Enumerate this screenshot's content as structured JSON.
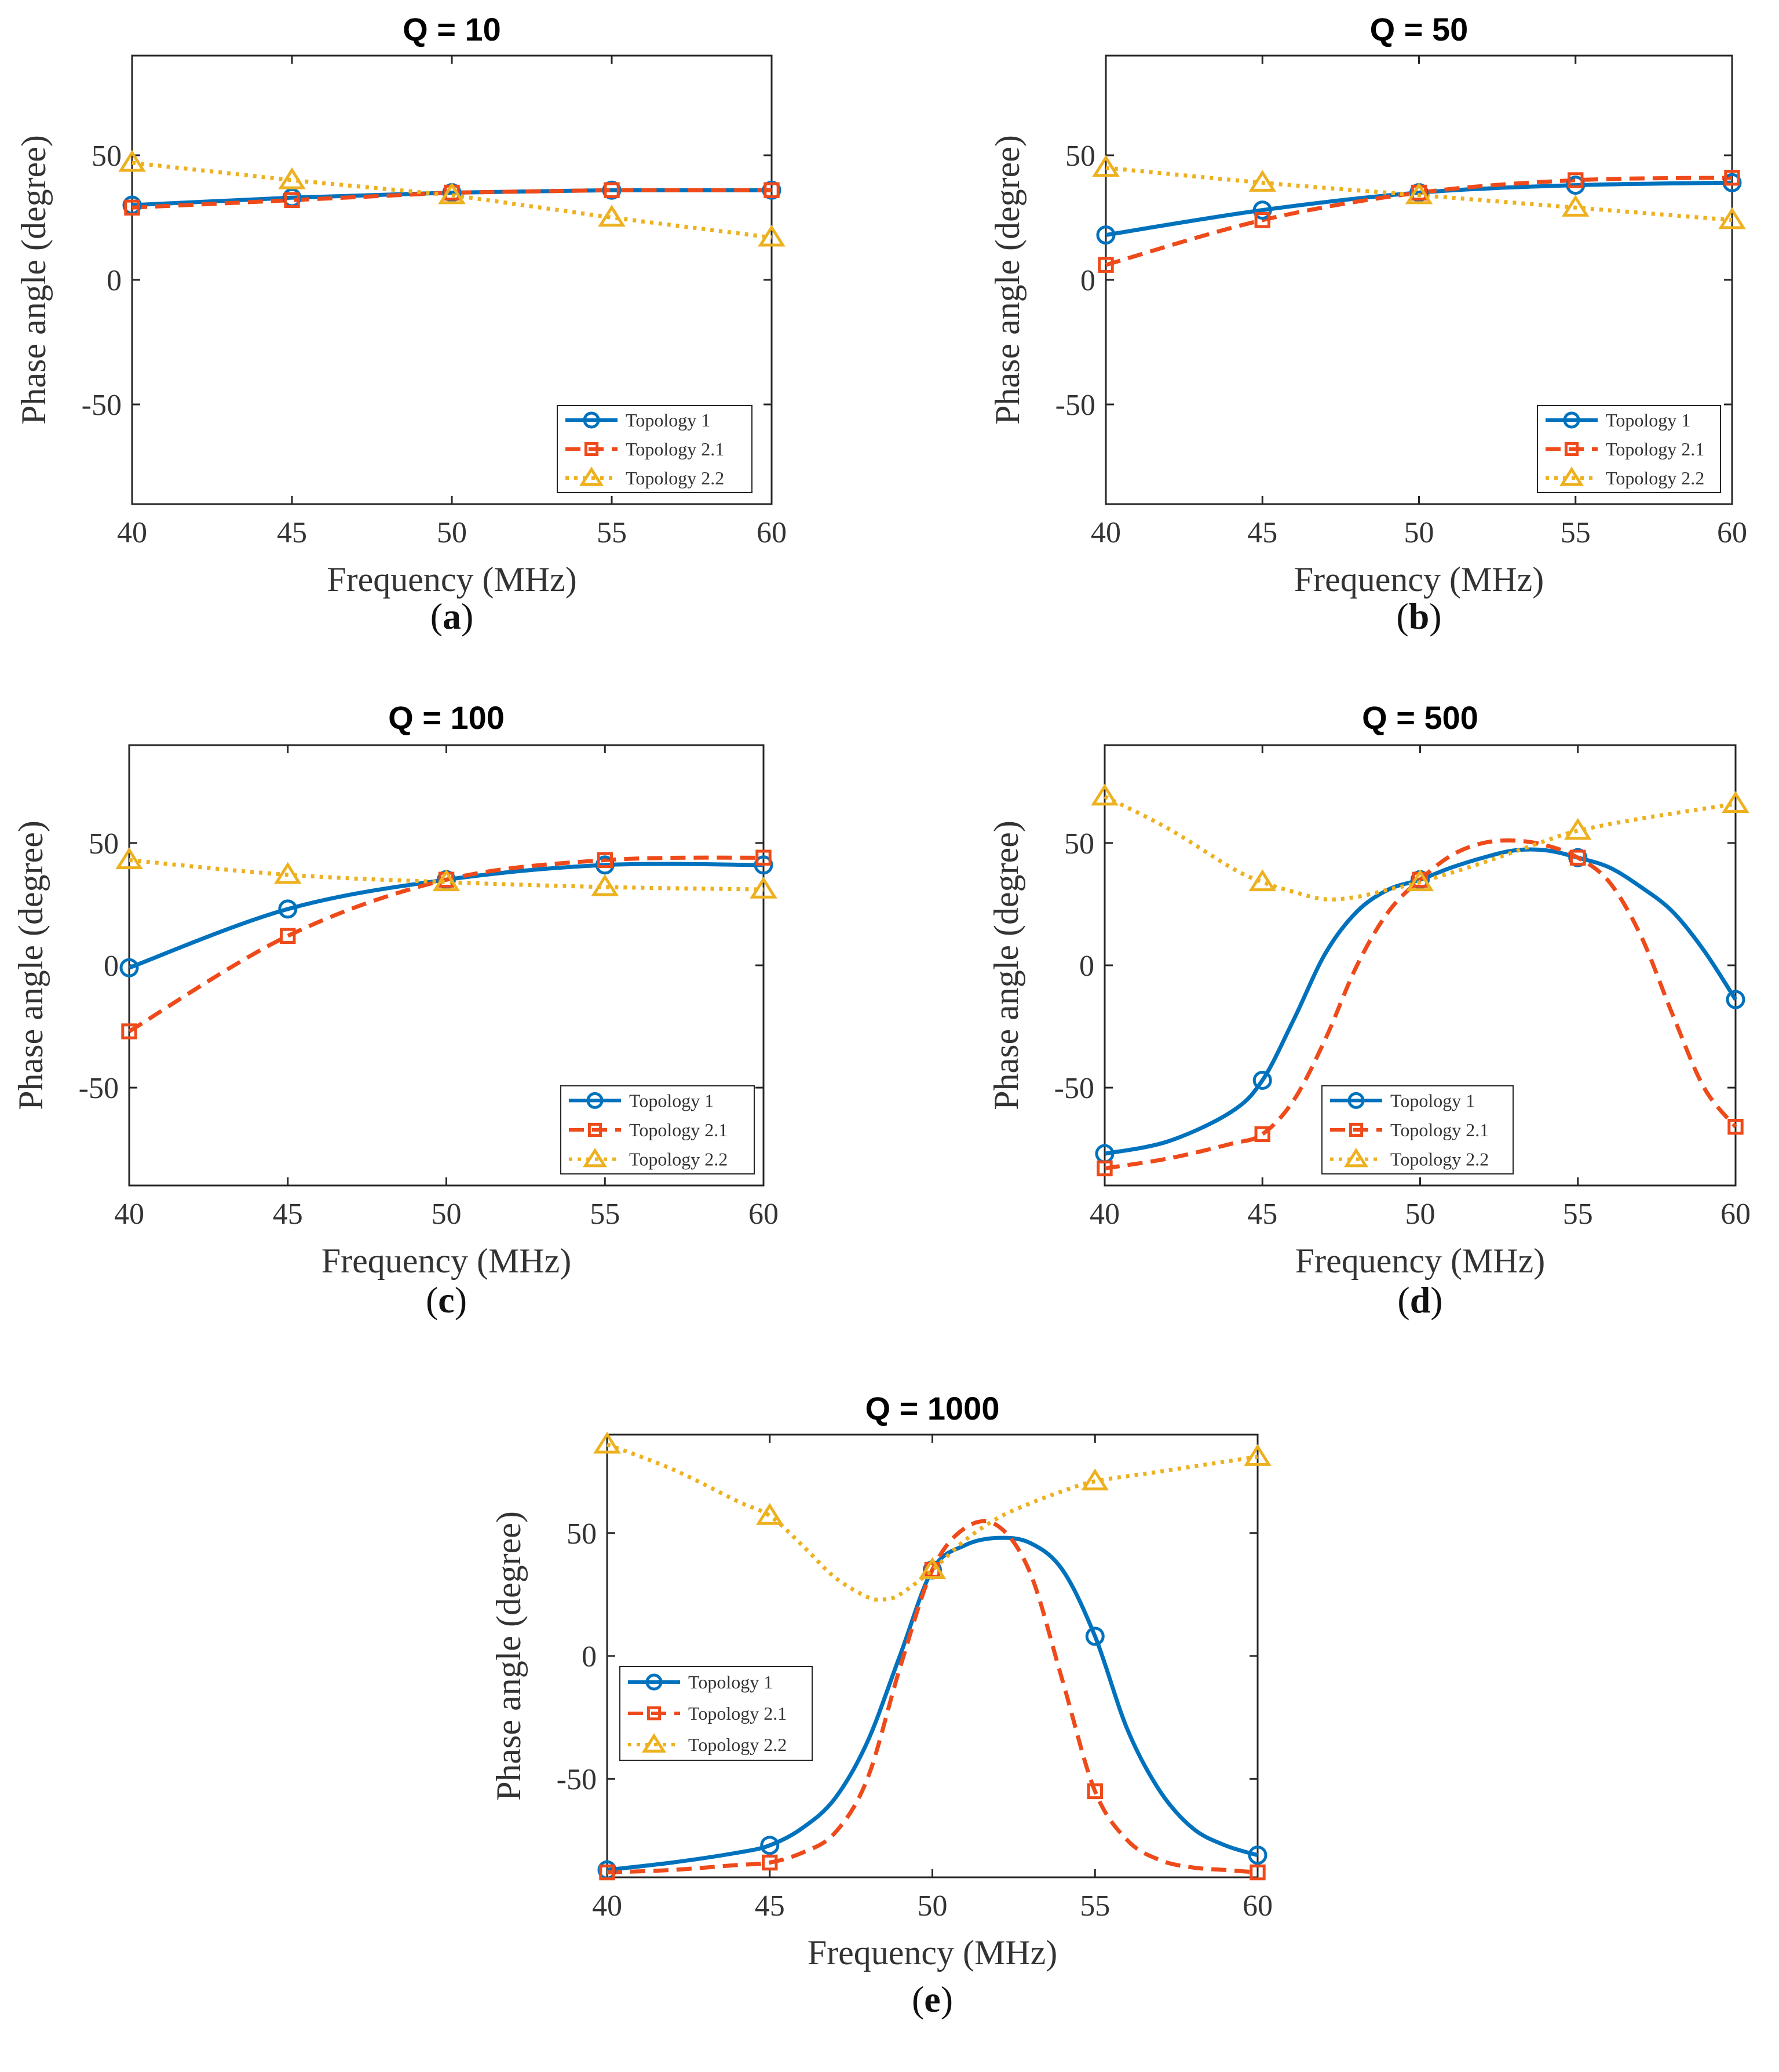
{
  "figure": {
    "x_label": "Frequency (MHz)",
    "y_label": "Phase angle (degree)",
    "legend": [
      "Topology 1",
      "Topology 2.1",
      "Topology 2.2"
    ],
    "colors": {
      "topology1": "#0072BD",
      "topology21": "#EE4A1A",
      "topology22": "#EDB120"
    },
    "markers": [
      "circle",
      "square",
      "triangle"
    ]
  },
  "chart_data": [
    {
      "type": "line",
      "panel_label": "a",
      "title": "Q = 10",
      "xlabel": "Frequency (MHz)",
      "ylabel": "Phase angle (degree)",
      "x": [
        40,
        45,
        50,
        55,
        60
      ],
      "xlim": [
        40,
        60
      ],
      "ylim": [
        -90,
        90
      ],
      "xticks": [
        40,
        45,
        50,
        55,
        60
      ],
      "yticks": [
        -50,
        0,
        50
      ],
      "legend_position": "bottom-right",
      "series": [
        {
          "name": "Topology 1",
          "values": [
            30,
            33,
            35,
            36,
            36
          ]
        },
        {
          "name": "Topology 2.1",
          "values": [
            29,
            32,
            35,
            36,
            36
          ]
        },
        {
          "name": "Topology 2.2",
          "values": [
            47,
            40,
            34,
            25,
            17
          ]
        }
      ]
    },
    {
      "type": "line",
      "panel_label": "b",
      "title": "Q = 50",
      "xlabel": "Frequency (MHz)",
      "ylabel": "Phase angle (degree)",
      "x": [
        40,
        45,
        50,
        55,
        60
      ],
      "xlim": [
        40,
        60
      ],
      "ylim": [
        -90,
        90
      ],
      "xticks": [
        40,
        45,
        50,
        55,
        60
      ],
      "yticks": [
        -50,
        0,
        50
      ],
      "legend_position": "bottom-right",
      "series": [
        {
          "name": "Topology 1",
          "values": [
            18,
            28,
            35,
            38,
            39
          ]
        },
        {
          "name": "Topology 2.1",
          "values": [
            6,
            24,
            35,
            40,
            41
          ]
        },
        {
          "name": "Topology 2.2",
          "values": [
            45,
            39,
            34,
            29,
            24
          ]
        }
      ]
    },
    {
      "type": "line",
      "panel_label": "c",
      "title": "Q = 100",
      "xlabel": "Frequency (MHz)",
      "ylabel": "Phase angle (degree)",
      "x": [
        40,
        45,
        50,
        55,
        60
      ],
      "xlim": [
        40,
        60
      ],
      "ylim": [
        -90,
        90
      ],
      "xticks": [
        40,
        45,
        50,
        55,
        60
      ],
      "yticks": [
        -50,
        0,
        50
      ],
      "legend_position": "bottom-right",
      "series": [
        {
          "name": "Topology 1",
          "values": [
            -1,
            23,
            35,
            41,
            41
          ]
        },
        {
          "name": "Topology 2.1",
          "values": [
            -27,
            12,
            35,
            43,
            44
          ]
        },
        {
          "name": "Topology 2.2",
          "values": [
            43,
            37,
            34,
            32,
            31
          ]
        }
      ]
    },
    {
      "type": "line",
      "panel_label": "d",
      "title": "Q = 500",
      "xlabel": "Frequency (MHz)",
      "ylabel": "Phase angle (degree)",
      "x": [
        40,
        45,
        50,
        55,
        60
      ],
      "xlim": [
        40,
        60
      ],
      "ylim": [
        -90,
        90
      ],
      "xticks": [
        40,
        45,
        50,
        55,
        60
      ],
      "yticks": [
        -50,
        0,
        50
      ],
      "legend_position": "bottom-left",
      "curve_extrema": {
        "topology1_peak": 47,
        "topology21_peak": 51,
        "topology22_min": 27
      },
      "series": [
        {
          "name": "Topology 1",
          "values": [
            -77,
            -47,
            35,
            44,
            -14
          ]
        },
        {
          "name": "Topology 2.1",
          "values": [
            -83,
            -69,
            35,
            44,
            -66
          ]
        },
        {
          "name": "Topology 2.2",
          "values": [
            69,
            34,
            34,
            55,
            66
          ]
        }
      ]
    },
    {
      "type": "line",
      "panel_label": "e",
      "title": "Q = 1000",
      "xlabel": "Frequency (MHz)",
      "ylabel": "Phase angle (degree)",
      "x": [
        40,
        45,
        50,
        55,
        60
      ],
      "xlim": [
        40,
        60
      ],
      "ylim": [
        -90,
        90
      ],
      "xticks": [
        40,
        45,
        50,
        55,
        60
      ],
      "yticks": [
        -50,
        0,
        50
      ],
      "legend_position": "middle-left",
      "curve_extrema": {
        "topology1_peak": 48,
        "topology21_peak": 53,
        "topology22_min": 23
      },
      "series": [
        {
          "name": "Topology 1",
          "values": [
            -87,
            -77,
            35,
            8,
            -81
          ]
        },
        {
          "name": "Topology 2.1",
          "values": [
            -88,
            -84,
            35,
            -55,
            -88
          ]
        },
        {
          "name": "Topology 2.2",
          "values": [
            86,
            57,
            35,
            71,
            81
          ]
        }
      ]
    }
  ]
}
